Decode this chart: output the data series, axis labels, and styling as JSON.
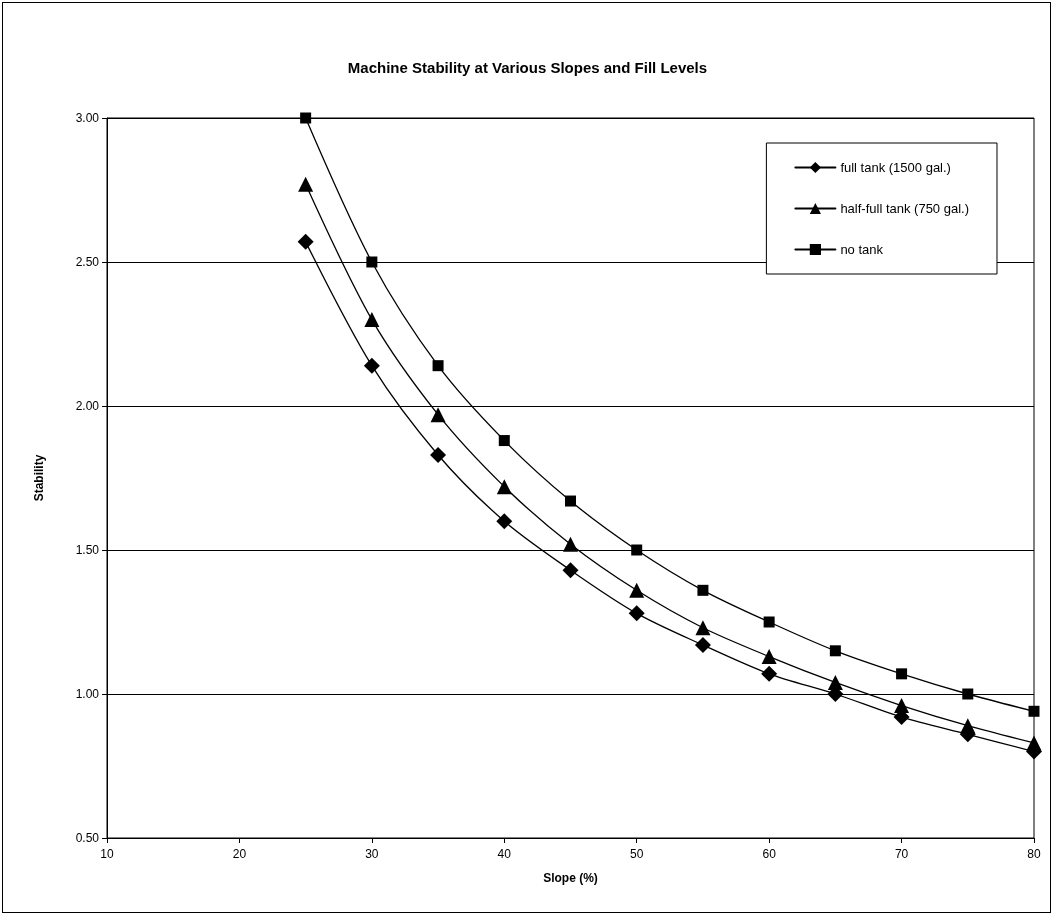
{
  "chart_data": {
    "type": "line",
    "title": "Machine Stability at Various Slopes and Fill Levels",
    "xlabel": "Slope (%)",
    "ylabel": "Stability",
    "x": [
      25,
      30,
      35,
      40,
      45,
      50,
      55,
      60,
      65,
      70,
      75,
      80
    ],
    "series": [
      {
        "name": "full tank (1500 gal.)",
        "color": "#000000",
        "marker": "diamond",
        "values": [
          2.57,
          2.14,
          1.83,
          1.6,
          1.43,
          1.28,
          1.17,
          1.07,
          1.0,
          0.92,
          0.86,
          0.8
        ]
      },
      {
        "name": "half-full tank (750 gal.)",
        "color": "#000000",
        "marker": "triangle",
        "values": [
          2.77,
          2.3,
          1.97,
          1.72,
          1.52,
          1.36,
          1.23,
          1.13,
          1.04,
          0.96,
          0.89,
          0.83
        ]
      },
      {
        "name": "no tank",
        "color": "#000000",
        "marker": "square",
        "values": [
          3.0,
          2.5,
          2.14,
          1.88,
          1.67,
          1.5,
          1.36,
          1.25,
          1.15,
          1.07,
          1.0,
          0.94
        ]
      }
    ],
    "xlim": [
      10,
      80
    ],
    "xticks": [
      10,
      20,
      30,
      40,
      50,
      60,
      70,
      80
    ],
    "ylim": [
      0.5,
      3.0
    ],
    "yticks": [
      {
        "value": 0.5,
        "label": "0.50"
      },
      {
        "value": 1.0,
        "label": "1.00"
      },
      {
        "value": 1.5,
        "label": "1.50"
      },
      {
        "value": 2.0,
        "label": "2.00"
      },
      {
        "value": 2.5,
        "label": "2.50"
      },
      {
        "value": 3.0,
        "label": "3.00"
      }
    ],
    "grid": "y",
    "legend": "top right",
    "line_style": "solid"
  }
}
